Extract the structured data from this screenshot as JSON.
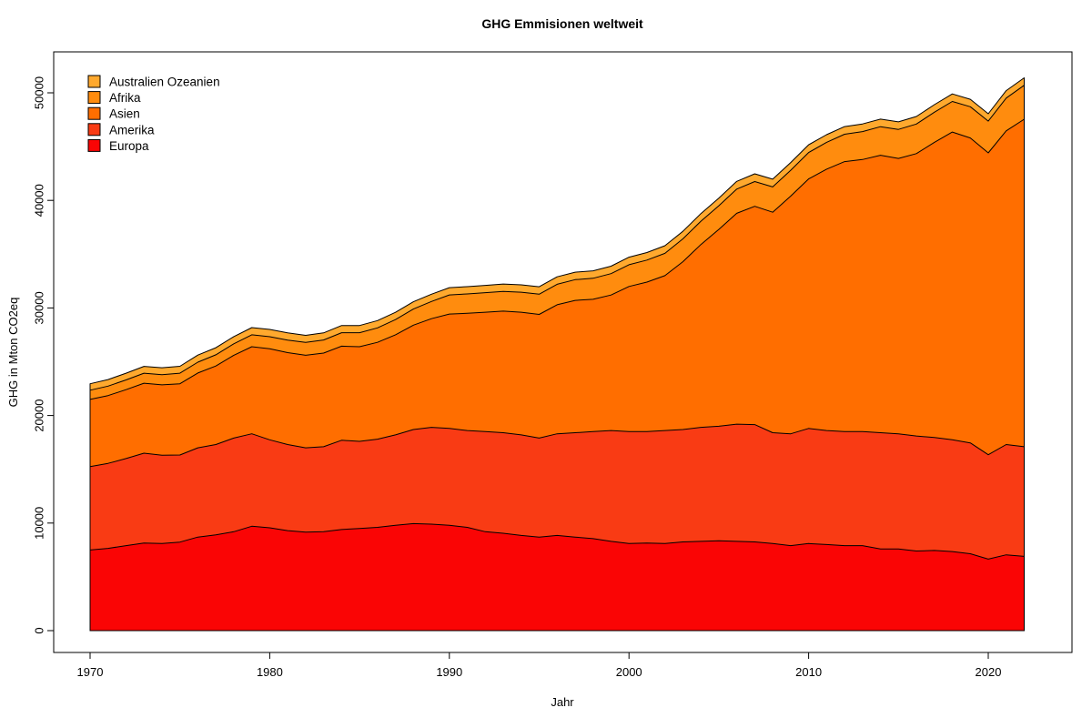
{
  "chart_data": {
    "type": "area",
    "stacked": true,
    "title": "GHG Emmisionen weltweit",
    "xlabel": "Jahr",
    "ylabel": "GHG in Mton CO2eq",
    "legend_position": "top-left",
    "grid": false,
    "x_ticks": [
      1970,
      1980,
      1990,
      2000,
      2010,
      2020
    ],
    "y_ticks": [
      0,
      10000,
      20000,
      30000,
      40000,
      50000
    ],
    "xlim": [
      1967.9,
      2024.1
    ],
    "ylim": [
      -2030,
      53800
    ],
    "x_range_data": [
      1970,
      2022
    ],
    "y_range_data": [
      0,
      51400
    ],
    "border_color": "#000000",
    "years": [
      1970,
      1971,
      1972,
      1973,
      1974,
      1975,
      1976,
      1977,
      1978,
      1979,
      1980,
      1981,
      1982,
      1983,
      1984,
      1985,
      1986,
      1987,
      1988,
      1989,
      1990,
      1991,
      1992,
      1993,
      1994,
      1995,
      1996,
      1997,
      1998,
      1999,
      2000,
      2001,
      2002,
      2003,
      2004,
      2005,
      2006,
      2007,
      2008,
      2009,
      2010,
      2011,
      2012,
      2013,
      2014,
      2015,
      2016,
      2017,
      2018,
      2019,
      2020,
      2021,
      2022
    ],
    "series": [
      {
        "name": "Europa",
        "color": "#FA0505",
        "values": [
          7500,
          7650,
          7900,
          8150,
          8100,
          8230,
          8700,
          8900,
          9200,
          9700,
          9560,
          9300,
          9150,
          9200,
          9400,
          9500,
          9600,
          9800,
          9950,
          9900,
          9800,
          9600,
          9200,
          9050,
          8850,
          8700,
          8850,
          8700,
          8550,
          8300,
          8100,
          8150,
          8100,
          8250,
          8300,
          8350,
          8300,
          8250,
          8100,
          7900,
          8100,
          8000,
          7900,
          7900,
          7600,
          7600,
          7400,
          7450,
          7350,
          7150,
          6650,
          7050,
          6900
        ]
      },
      {
        "name": "Amerika",
        "color": "#F93B14",
        "values": [
          7750,
          7900,
          8100,
          8350,
          8200,
          8100,
          8300,
          8400,
          8700,
          8600,
          8180,
          8000,
          7850,
          7900,
          8300,
          8100,
          8200,
          8400,
          8750,
          9000,
          9000,
          9000,
          9300,
          9350,
          9350,
          9200,
          9450,
          9700,
          9950,
          10300,
          10400,
          10350,
          10500,
          10450,
          10600,
          10650,
          10900,
          10900,
          10300,
          10400,
          10700,
          10600,
          10600,
          10600,
          10800,
          10700,
          10700,
          10500,
          10400,
          10300,
          9700,
          10250,
          10200
        ]
      },
      {
        "name": "Asien",
        "color": "#FF6E00",
        "values": [
          6250,
          6300,
          6400,
          6500,
          6550,
          6620,
          6950,
          7300,
          7700,
          8100,
          8460,
          8550,
          8600,
          8700,
          8750,
          8800,
          9000,
          9300,
          9700,
          10100,
          10630,
          10900,
          11100,
          11300,
          11400,
          11500,
          12000,
          12300,
          12300,
          12600,
          13500,
          13900,
          14400,
          15600,
          17000,
          18300,
          19600,
          20300,
          20500,
          22100,
          23200,
          24300,
          25100,
          25300,
          25800,
          25600,
          26250,
          27450,
          28600,
          28355,
          28070,
          29160,
          30450
        ]
      },
      {
        "name": "Afrika",
        "color": "#FF8C0E",
        "values": [
          850,
          880,
          910,
          930,
          950,
          980,
          1010,
          1040,
          1070,
          1100,
          1130,
          1160,
          1190,
          1220,
          1250,
          1300,
          1350,
          1420,
          1500,
          1600,
          1780,
          1800,
          1820,
          1840,
          1860,
          1880,
          1900,
          1930,
          1960,
          1990,
          2020,
          2050,
          2080,
          2120,
          2160,
          2200,
          2250,
          2300,
          2350,
          2400,
          2450,
          2500,
          2550,
          2600,
          2650,
          2700,
          2750,
          2800,
          2850,
          2900,
          2950,
          3050,
          3150
        ]
      },
      {
        "name": "Australien Ozeanien",
        "color": "#FFA92E",
        "values": [
          600,
          610,
          620,
          635,
          645,
          650,
          655,
          660,
          665,
          670,
          675,
          670,
          665,
          660,
          665,
          670,
          672,
          675,
          678,
          680,
          680,
          680,
          682,
          684,
          686,
          688,
          690,
          692,
          694,
          696,
          700,
          702,
          705,
          707,
          710,
          712,
          715,
          718,
          720,
          718,
          715,
          712,
          710,
          708,
          705,
          700,
          700,
          700,
          700,
          695,
          680,
          690,
          700
        ]
      }
    ]
  }
}
